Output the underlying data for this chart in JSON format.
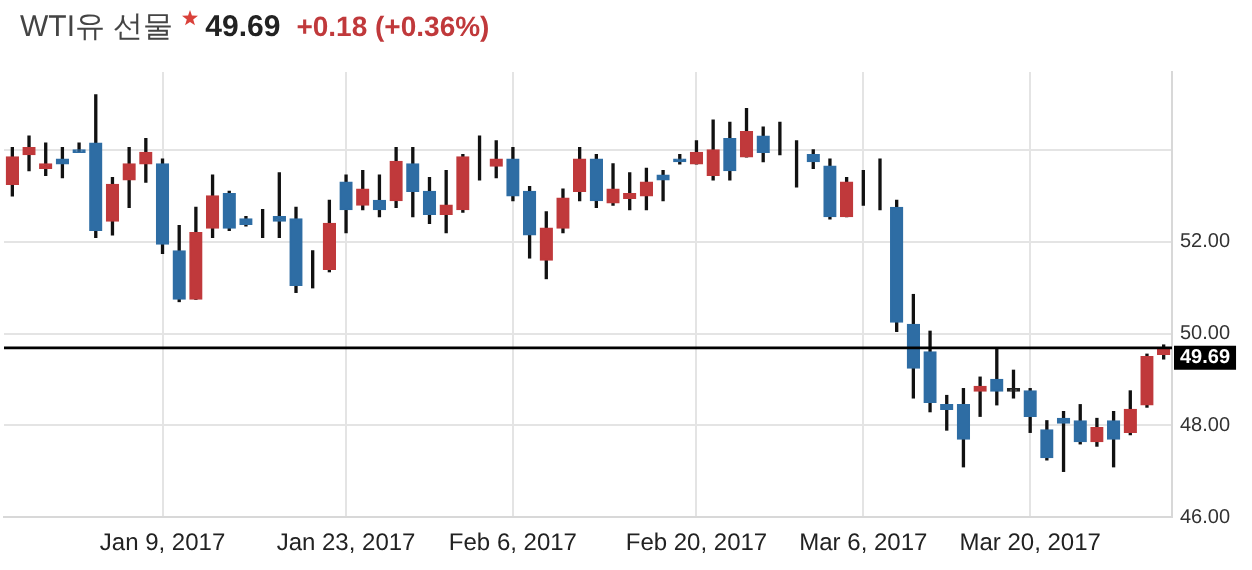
{
  "chart_data": {
    "type": "candlestick",
    "title": "WTI유 선물",
    "subtitle": "49.69",
    "annotations": [
      "+0.18 (+0.36%)"
    ],
    "categories": [
      null,
      null,
      null,
      null,
      null,
      null,
      null,
      null,
      null,
      "Jan 9, 2017",
      null,
      null,
      null,
      null,
      null,
      null,
      null,
      null,
      null,
      null,
      "Jan 23, 2017",
      null,
      null,
      null,
      null,
      null,
      null,
      null,
      null,
      null,
      "Feb 6, 2017",
      null,
      null,
      null,
      null,
      null,
      null,
      null,
      null,
      null,
      null,
      "Feb 20, 2017",
      null,
      null,
      null,
      null,
      null,
      null,
      null,
      null,
      null,
      "Mar 6, 2017",
      null,
      null,
      null,
      null,
      null,
      null,
      null,
      null,
      null,
      "Mar 20, 2017",
      null,
      null,
      null,
      null,
      null,
      null,
      null,
      null
    ],
    "ohlc": [
      [
        53.25,
        54.05,
        53.0,
        53.85
      ],
      [
        53.9,
        54.3,
        53.55,
        54.05
      ],
      [
        53.6,
        54.15,
        53.45,
        53.7
      ],
      [
        53.8,
        54.05,
        53.4,
        53.7
      ],
      [
        54.0,
        54.15,
        53.95,
        53.95
      ],
      [
        54.15,
        55.2,
        52.1,
        52.25
      ],
      [
        52.45,
        53.4,
        52.15,
        53.25
      ],
      [
        53.35,
        54.05,
        52.75,
        53.7
      ],
      [
        53.7,
        54.25,
        53.3,
        53.95
      ],
      [
        53.7,
        53.8,
        51.75,
        51.95
      ],
      [
        51.8,
        52.35,
        50.7,
        50.75
      ],
      [
        50.75,
        52.75,
        50.75,
        52.2
      ],
      [
        52.3,
        53.45,
        52.1,
        53.0
      ],
      [
        53.05,
        53.1,
        52.25,
        52.3
      ],
      [
        52.5,
        52.55,
        52.35,
        52.38
      ],
      [
        52.45,
        52.7,
        52.1,
        52.45
      ],
      [
        52.55,
        53.5,
        52.1,
        52.45
      ],
      [
        52.5,
        52.75,
        50.9,
        51.05
      ],
      [
        51.35,
        51.8,
        51.0,
        51.35
      ],
      [
        51.4,
        52.9,
        51.35,
        52.4
      ],
      [
        53.3,
        53.45,
        52.2,
        52.7
      ],
      [
        52.8,
        53.55,
        52.7,
        53.15
      ],
      [
        52.9,
        53.45,
        52.55,
        52.7
      ],
      [
        52.9,
        54.05,
        52.75,
        53.75
      ],
      [
        53.7,
        54.05,
        52.55,
        53.1
      ],
      [
        53.1,
        53.4,
        52.4,
        52.6
      ],
      [
        52.6,
        53.55,
        52.2,
        52.8
      ],
      [
        52.7,
        53.9,
        52.65,
        53.85
      ],
      [
        53.5,
        54.3,
        53.35,
        53.5
      ],
      [
        53.65,
        54.2,
        53.4,
        53.8
      ],
      [
        53.8,
        54.05,
        52.9,
        53.0
      ],
      [
        53.1,
        53.2,
        51.65,
        52.15
      ],
      [
        51.6,
        52.65,
        51.2,
        52.3
      ],
      [
        52.3,
        53.15,
        52.2,
        52.95
      ],
      [
        53.1,
        54.05,
        52.9,
        53.8
      ],
      [
        53.8,
        53.9,
        52.75,
        52.9
      ],
      [
        52.85,
        53.7,
        52.8,
        53.15
      ],
      [
        52.95,
        53.5,
        52.7,
        53.05
      ],
      [
        53.0,
        53.6,
        52.7,
        53.3
      ],
      [
        53.45,
        53.55,
        52.9,
        53.35
      ],
      [
        53.8,
        53.9,
        53.7,
        53.75
      ],
      [
        53.7,
        54.2,
        53.7,
        53.95
      ],
      [
        53.45,
        54.65,
        53.35,
        54.0
      ],
      [
        54.25,
        54.6,
        53.35,
        53.55
      ],
      [
        53.85,
        54.9,
        53.85,
        54.4
      ],
      [
        54.3,
        54.5,
        53.75,
        53.95
      ],
      [
        54.0,
        54.6,
        53.9,
        54.0
      ],
      [
        53.95,
        54.2,
        53.2,
        53.95
      ],
      [
        53.9,
        54.0,
        53.6,
        53.75
      ],
      [
        53.65,
        53.8,
        52.5,
        52.55
      ],
      [
        52.55,
        53.4,
        52.55,
        53.3
      ],
      [
        53.15,
        53.55,
        52.8,
        53.15
      ],
      [
        53.15,
        53.8,
        52.7,
        53.15
      ],
      [
        52.75,
        52.9,
        50.05,
        50.25
      ],
      [
        50.2,
        50.85,
        48.6,
        49.25
      ],
      [
        49.6,
        50.05,
        48.3,
        48.5
      ],
      [
        48.45,
        48.65,
        47.9,
        48.35
      ],
      [
        48.45,
        48.8,
        47.1,
        47.7
      ],
      [
        48.75,
        49.05,
        48.2,
        48.85
      ],
      [
        49.0,
        49.65,
        48.45,
        48.75
      ],
      [
        48.8,
        49.2,
        48.6,
        48.75
      ],
      [
        48.75,
        48.8,
        47.85,
        48.2
      ],
      [
        47.9,
        48.1,
        47.25,
        47.3
      ],
      [
        48.15,
        48.3,
        47.0,
        48.05
      ],
      [
        48.1,
        48.45,
        47.6,
        47.65
      ],
      [
        47.65,
        48.15,
        47.55,
        47.95
      ],
      [
        48.1,
        48.3,
        47.1,
        47.7
      ],
      [
        47.85,
        48.75,
        47.8,
        48.35
      ],
      [
        48.45,
        49.55,
        48.4,
        49.5
      ],
      [
        49.55,
        49.75,
        49.45,
        49.69
      ]
    ],
    "colors": [
      "#c0393b",
      "#c0393b",
      "#c0393b",
      "#2e6da4",
      "#2e6da4",
      "#2e6da4",
      "#c0393b",
      "#c0393b",
      "#c0393b",
      "#2e6da4",
      "#2e6da4",
      "#c0393b",
      "#c0393b",
      "#2e6da4",
      "#2e6da4",
      "#222222",
      "#2e6da4",
      "#2e6da4",
      "#222222",
      "#c0393b",
      "#2e6da4",
      "#c0393b",
      "#2e6da4",
      "#c0393b",
      "#2e6da4",
      "#2e6da4",
      "#c0393b",
      "#c0393b",
      "#222222",
      "#c0393b",
      "#2e6da4",
      "#2e6da4",
      "#c0393b",
      "#c0393b",
      "#c0393b",
      "#2e6da4",
      "#c0393b",
      "#c0393b",
      "#c0393b",
      "#2e6da4",
      "#2e6da4",
      "#c0393b",
      "#c0393b",
      "#2e6da4",
      "#c0393b",
      "#2e6da4",
      "#222222",
      "#222222",
      "#2e6da4",
      "#2e6da4",
      "#c0393b",
      "#222222",
      "#222222",
      "#2e6da4",
      "#2e6da4",
      "#2e6da4",
      "#2e6da4",
      "#2e6da4",
      "#c0393b",
      "#2e6da4",
      "#222222",
      "#2e6da4",
      "#2e6da4",
      "#2e6da4",
      "#2e6da4",
      "#c0393b",
      "#2e6da4",
      "#c0393b",
      "#c0393b",
      "#c0393b"
    ],
    "ylim": [
      46,
      55.7
    ],
    "yticks": [
      {
        "value": 46,
        "label": "46.00"
      },
      {
        "value": 48,
        "label": "48.00"
      },
      {
        "value": 50,
        "label": "50.00"
      },
      {
        "value": 52,
        "label": "52.00"
      },
      {
        "value": 54,
        "label": null
      }
    ],
    "ref_lines": [
      {
        "axis": "y",
        "value": 49.69,
        "label": "49.69",
        "color": "#000000"
      }
    ],
    "grid": true
  }
}
